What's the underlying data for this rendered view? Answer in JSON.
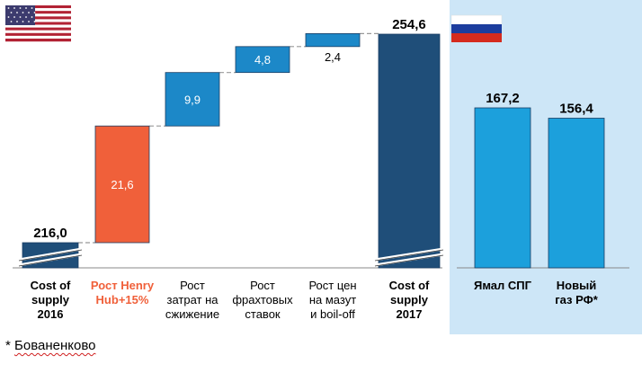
{
  "chart_data": [
    {
      "type": "bar",
      "subtype": "waterfall",
      "flag": "USA",
      "categories": [
        "Cost of supply 2016",
        "Рост Henry Hub+15%",
        "Рост затрат на сжижение",
        "Рост фрахтовых ставок",
        "Рост цен на мазут и boil-off",
        "Cost of supply 2017"
      ],
      "category_lines": [
        [
          "Cost of",
          "supply",
          "2016"
        ],
        [
          "Рост Henry",
          "Hub+15%"
        ],
        [
          "Рост",
          "затрат на",
          "сжижение"
        ],
        [
          "Рост",
          "фрахтовых",
          "ставок"
        ],
        [
          "Рост цен",
          "на мазут",
          "и boil-off"
        ],
        [
          "Cost of",
          "supply",
          "2017"
        ]
      ],
      "values": [
        216.0,
        21.6,
        9.9,
        4.8,
        2.4,
        254.6
      ],
      "labels": [
        "216,0",
        "21,6",
        "9,9",
        "4,8",
        "2,4",
        "254,6"
      ],
      "bar_kinds": [
        "total",
        "increase",
        "increase",
        "increase",
        "increase",
        "total"
      ],
      "colors": [
        "#1f4e79",
        "#f0603a",
        "#1c88c8",
        "#1c88c8",
        "#1c88c8",
        "#1f4e79"
      ],
      "axis_break": true,
      "grid": false,
      "legend": "none"
    },
    {
      "type": "bar",
      "flag": "Russia",
      "categories": [
        "Ямал СПГ",
        "Новый газ РФ*"
      ],
      "category_lines": [
        [
          "Ямал СПГ"
        ],
        [
          "Новый",
          "газ РФ*"
        ]
      ],
      "values": [
        167.2,
        156.4
      ],
      "labels": [
        "167,2",
        "156,4"
      ],
      "colors": [
        "#1ca0dc",
        "#1ca0dc"
      ],
      "background": "#cde6f7",
      "grid": false,
      "legend": "none"
    }
  ],
  "footnote": {
    "marker": "*",
    "text": "Бованенково"
  },
  "colors": {
    "panel_bg": "#cde6f7",
    "us_total": "#1f4e79",
    "increase_orange": "#f0603a",
    "increase_blue": "#1c88c8",
    "ru_bar": "#1ca0dc"
  }
}
